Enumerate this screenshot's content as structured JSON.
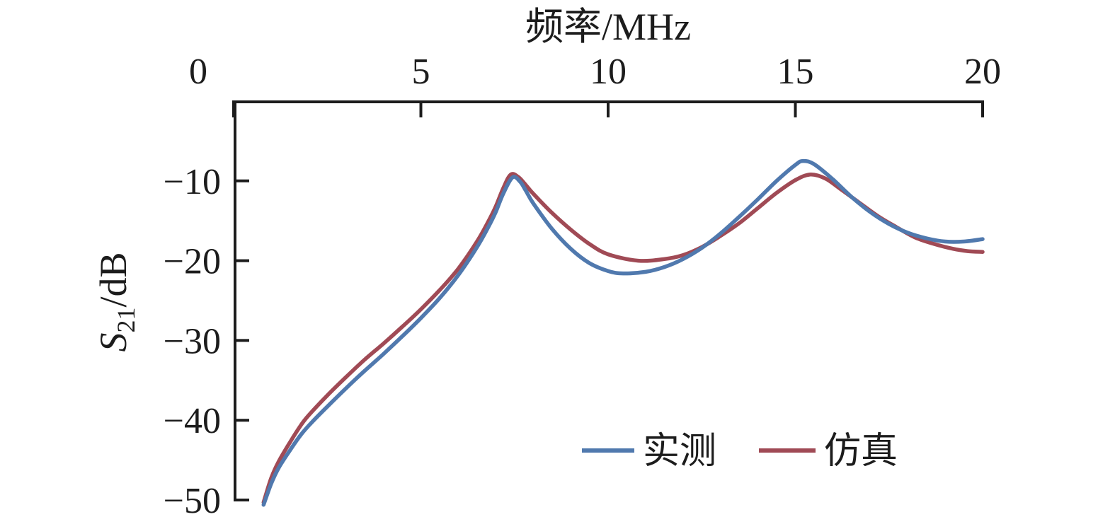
{
  "figure": {
    "background": "#ffffff",
    "axis_color": "#1c1c1c",
    "text_color": "#1c1c1c"
  },
  "chart_data": {
    "type": "line",
    "title": "频率/MHz",
    "xlabel": "频率/MHz",
    "xlabel_position": "top",
    "ylabel": "S21/dB",
    "ylabel_symbol": "S",
    "ylabel_subscript": "21",
    "ylabel_unit": "/dB",
    "xlim": [
      0,
      20
    ],
    "ylim": [
      -55,
      0
    ],
    "x_ticks": [
      0,
      5,
      10,
      15,
      20
    ],
    "x_tick_labels": [
      "0",
      "5",
      "10",
      "15",
      "20"
    ],
    "y_ticks": [
      -10,
      -20,
      -30,
      -40,
      -50
    ],
    "y_tick_labels": [
      "−10",
      "−20",
      "−30",
      "−40",
      "−50"
    ],
    "grid": false,
    "legend": {
      "position": "inside-bottom-right",
      "items": [
        {
          "label": "实测",
          "color": "#5079ae"
        },
        {
          "label": "仿真",
          "color": "#a04a55"
        }
      ]
    },
    "series": [
      {
        "name": "实测",
        "color": "#5079ae",
        "x": [
          0.8,
          1.0,
          1.2,
          1.5,
          1.8,
          2.1,
          2.5,
          3.0,
          3.5,
          4.0,
          4.5,
          5.0,
          5.5,
          6.0,
          6.5,
          6.8,
          7.0,
          7.2,
          7.45,
          7.65,
          7.8,
          8.0,
          8.5,
          9.0,
          9.5,
          10.0,
          10.4,
          11.0,
          11.5,
          12.0,
          12.5,
          13.0,
          13.5,
          14.0,
          14.5,
          15.0,
          15.2,
          15.5,
          16.0,
          16.5,
          17.0,
          17.5,
          18.0,
          18.5,
          19.0,
          19.5,
          20.0
        ],
        "y": [
          -50.6,
          -48.0,
          -46.0,
          -43.8,
          -41.8,
          -40.2,
          -38.3,
          -36.0,
          -33.8,
          -31.7,
          -29.5,
          -27.2,
          -24.7,
          -21.8,
          -18.3,
          -15.8,
          -13.9,
          -11.6,
          -9.55,
          -10.1,
          -11.2,
          -12.8,
          -16.0,
          -18.5,
          -20.3,
          -21.3,
          -21.6,
          -21.4,
          -20.8,
          -19.8,
          -18.4,
          -16.6,
          -14.5,
          -12.3,
          -10.0,
          -8.0,
          -7.5,
          -7.9,
          -9.8,
          -12.0,
          -13.9,
          -15.4,
          -16.5,
          -17.2,
          -17.6,
          -17.6,
          -17.3
        ]
      },
      {
        "name": "仿真",
        "color": "#a04a55",
        "x": [
          0.8,
          1.0,
          1.2,
          1.5,
          1.8,
          2.0,
          2.5,
          3.0,
          3.5,
          4.0,
          4.5,
          5.0,
          5.5,
          6.0,
          6.5,
          6.8,
          7.0,
          7.2,
          7.4,
          7.6,
          7.8,
          8.0,
          8.5,
          9.0,
          9.5,
          10.0,
          10.8,
          11.5,
          12.0,
          12.5,
          13.0,
          13.5,
          14.0,
          14.5,
          15.0,
          15.4,
          15.8,
          16.2,
          16.7,
          17.2,
          17.7,
          18.2,
          18.7,
          19.2,
          19.6,
          20.0
        ],
        "y": [
          -50.3,
          -47.3,
          -45.2,
          -42.8,
          -40.6,
          -39.4,
          -36.9,
          -34.6,
          -32.4,
          -30.4,
          -28.3,
          -26.1,
          -23.7,
          -21.0,
          -17.6,
          -15.1,
          -13.2,
          -10.9,
          -9.2,
          -9.5,
          -10.5,
          -11.6,
          -14.0,
          -16.1,
          -17.9,
          -19.2,
          -20.0,
          -19.8,
          -19.3,
          -18.3,
          -16.9,
          -15.3,
          -13.4,
          -11.5,
          -9.9,
          -9.2,
          -9.7,
          -11.0,
          -12.7,
          -14.4,
          -15.8,
          -17.1,
          -17.9,
          -18.5,
          -18.8,
          -18.9
        ]
      }
    ]
  }
}
